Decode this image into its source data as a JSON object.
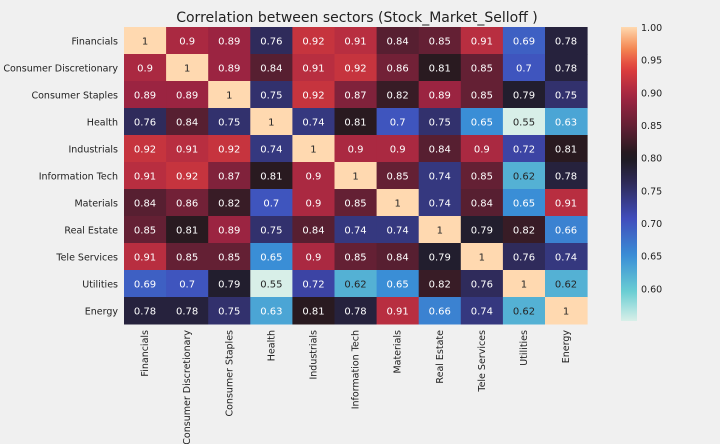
{
  "chart_data": {
    "type": "heatmap",
    "title": "Correlation between sectors (Stock_Market_Selloff )",
    "categories": [
      "Financials",
      "Consumer Discretionary",
      "Consumer Staples",
      "Health",
      "Industrials",
      "Information Tech",
      "Materials",
      "Real Estate",
      "Tele Services",
      "Utilities",
      "Energy"
    ],
    "values": [
      [
        1,
        0.9,
        0.89,
        0.76,
        0.92,
        0.91,
        0.84,
        0.85,
        0.91,
        0.69,
        0.78
      ],
      [
        0.9,
        1,
        0.89,
        0.84,
        0.91,
        0.92,
        0.86,
        0.81,
        0.85,
        0.7,
        0.78
      ],
      [
        0.89,
        0.89,
        1,
        0.75,
        0.92,
        0.87,
        0.82,
        0.89,
        0.85,
        0.79,
        0.75
      ],
      [
        0.76,
        0.84,
        0.75,
        1,
        0.74,
        0.81,
        0.7,
        0.75,
        0.65,
        0.55,
        0.63
      ],
      [
        0.92,
        0.91,
        0.92,
        0.74,
        1,
        0.9,
        0.9,
        0.84,
        0.9,
        0.72,
        0.81
      ],
      [
        0.91,
        0.92,
        0.87,
        0.81,
        0.9,
        1,
        0.85,
        0.74,
        0.85,
        0.62,
        0.78
      ],
      [
        0.84,
        0.86,
        0.82,
        0.7,
        0.9,
        0.85,
        1,
        0.74,
        0.84,
        0.65,
        0.91
      ],
      [
        0.85,
        0.81,
        0.89,
        0.75,
        0.84,
        0.74,
        0.74,
        1,
        0.79,
        0.82,
        0.66
      ],
      [
        0.91,
        0.85,
        0.85,
        0.65,
        0.9,
        0.85,
        0.84,
        0.79,
        1,
        0.76,
        0.74
      ],
      [
        0.69,
        0.7,
        0.79,
        0.55,
        0.72,
        0.62,
        0.65,
        0.82,
        0.76,
        1,
        0.62
      ],
      [
        0.78,
        0.78,
        0.75,
        0.63,
        0.81,
        0.78,
        0.91,
        0.66,
        0.74,
        0.62,
        1
      ]
    ],
    "colorbar": {
      "min": 0.55,
      "max": 1.0,
      "ticks": [
        0.6,
        0.65,
        0.7,
        0.75,
        0.8,
        0.85,
        0.9,
        0.95,
        1.0
      ],
      "tick_labels": [
        "0.60",
        "0.65",
        "0.70",
        "0.75",
        "0.80",
        "0.85",
        "0.90",
        "0.95",
        "1.00"
      ],
      "colormap": "icefire-like diverging (teal - blue - dark - red - orange - light)"
    },
    "grid": false,
    "legend": "colorbar-right"
  }
}
